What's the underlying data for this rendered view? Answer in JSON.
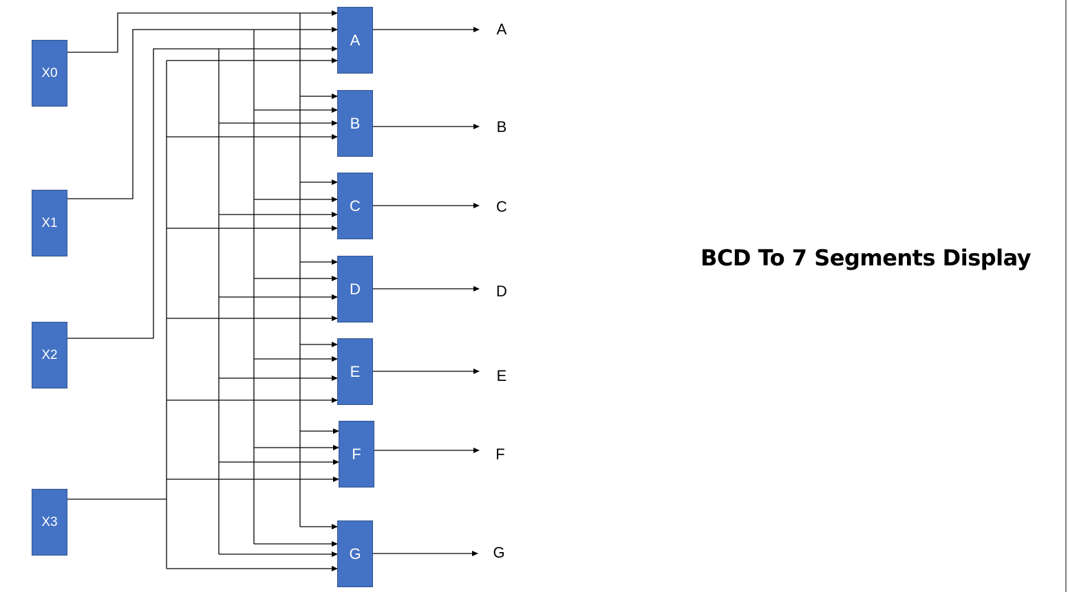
{
  "title": "BCD To 7 Segments Display",
  "inputs": [
    "X0",
    "X1",
    "X2",
    "X3"
  ],
  "segments": [
    "A",
    "B",
    "C",
    "D",
    "E",
    "F",
    "G"
  ],
  "outputs": [
    "A",
    "B",
    "C",
    "D",
    "E",
    "F",
    "G"
  ],
  "colors": {
    "block_fill": "#4472c4",
    "block_border": "#2f528f",
    "wire": "#000000"
  }
}
